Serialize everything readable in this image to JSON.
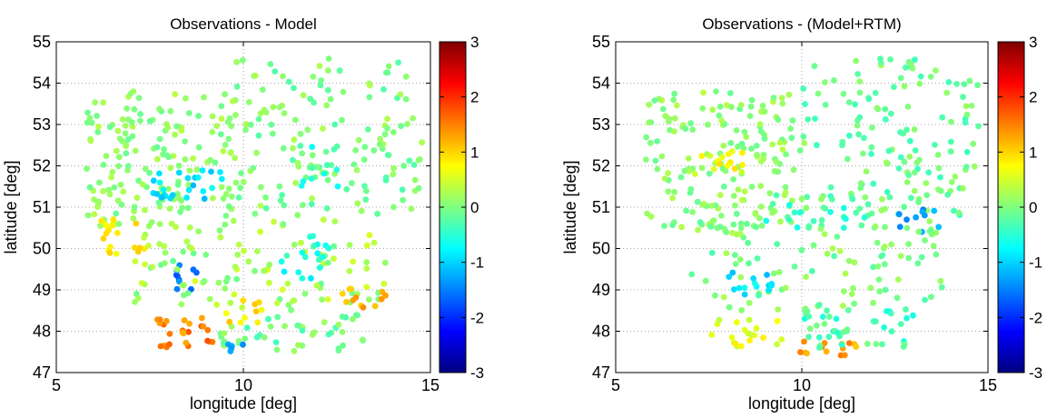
{
  "chart_data": [
    {
      "type": "scatter",
      "title": "Observations - Model",
      "xlabel": "longitude [deg]",
      "ylabel": "latitude [deg]",
      "xlim": [
        5,
        15
      ],
      "ylim": [
        47,
        55
      ],
      "xticks": [
        "5",
        "10",
        "15"
      ],
      "yticks": [
        "47",
        "48",
        "49",
        "50",
        "51",
        "52",
        "53",
        "54",
        "55"
      ],
      "grid": "dotted",
      "colorbar": {
        "min": -3,
        "max": 3,
        "ticks": [
          "3",
          "2",
          "1",
          "0",
          "-1",
          "-2",
          "-3"
        ],
        "colormap": "jet"
      },
      "clusters": [
        {
          "lon": [
            5.8,
            9.8
          ],
          "lat": [
            50.5,
            53.8
          ],
          "value": 0.1,
          "spread": 0.25,
          "n": 170
        },
        {
          "lon": [
            9.8,
            14.8
          ],
          "lat": [
            50.8,
            54.6
          ],
          "value": 0.0,
          "spread": 0.3,
          "n": 150
        },
        {
          "lon": [
            7.5,
            9.5
          ],
          "lat": [
            51.2,
            51.9
          ],
          "value": -0.9,
          "spread": 0.25,
          "n": 25
        },
        {
          "lon": [
            6.2,
            7.5
          ],
          "lat": [
            49.8,
            50.8
          ],
          "value": 0.8,
          "spread": 0.25,
          "n": 18
        },
        {
          "lon": [
            8.2,
            8.9
          ],
          "lat": [
            49.0,
            49.8
          ],
          "value": -1.6,
          "spread": 0.25,
          "n": 10
        },
        {
          "lon": [
            11.5,
            12.6
          ],
          "lat": [
            51.5,
            52.5
          ],
          "value": -0.5,
          "spread": 0.3,
          "n": 10
        },
        {
          "lon": [
            7.0,
            13.8
          ],
          "lat": [
            48.5,
            50.7
          ],
          "value": 0.2,
          "spread": 0.35,
          "n": 110
        },
        {
          "lon": [
            11.0,
            12.3
          ],
          "lat": [
            49.2,
            50.3
          ],
          "value": -0.6,
          "spread": 0.3,
          "n": 18
        },
        {
          "lon": [
            7.6,
            9.2
          ],
          "lat": [
            47.6,
            48.4
          ],
          "value": 1.5,
          "spread": 0.3,
          "n": 25
        },
        {
          "lon": [
            12.5,
            13.8
          ],
          "lat": [
            48.5,
            49.1
          ],
          "value": 1.3,
          "spread": 0.3,
          "n": 12
        },
        {
          "lon": [
            9.2,
            13.2
          ],
          "lat": [
            47.5,
            48.4
          ],
          "value": -0.1,
          "spread": 0.3,
          "n": 45
        },
        {
          "lon": [
            9.5,
            10.5
          ],
          "lat": [
            48.2,
            48.8
          ],
          "value": 0.9,
          "spread": 0.25,
          "n": 10
        },
        {
          "lon": [
            9.5,
            10.0
          ],
          "lat": [
            47.5,
            47.8
          ],
          "value": -1.3,
          "spread": 0.2,
          "n": 5
        }
      ]
    },
    {
      "type": "scatter",
      "title": "Observations - (Model+RTM)",
      "xlabel": "longitude [deg]",
      "ylabel": "latitude [deg]",
      "xlim": [
        5,
        15
      ],
      "ylim": [
        47,
        55
      ],
      "xticks": [
        "5",
        "10",
        "15"
      ],
      "yticks": [
        "47",
        "48",
        "49",
        "50",
        "51",
        "52",
        "53",
        "54",
        "55"
      ],
      "grid": "dotted",
      "colorbar": {
        "min": -3,
        "max": 3,
        "ticks": [
          "3",
          "2",
          "1",
          "0",
          "-1",
          "-2",
          "-3"
        ],
        "colormap": "jet"
      },
      "clusters": [
        {
          "lon": [
            5.8,
            9.8
          ],
          "lat": [
            50.5,
            53.8
          ],
          "value": 0.1,
          "spread": 0.25,
          "n": 170
        },
        {
          "lon": [
            9.8,
            14.8
          ],
          "lat": [
            50.8,
            54.6
          ],
          "value": -0.1,
          "spread": 0.3,
          "n": 150
        },
        {
          "lon": [
            7.0,
            8.5
          ],
          "lat": [
            51.8,
            52.4
          ],
          "value": 0.7,
          "spread": 0.25,
          "n": 15
        },
        {
          "lon": [
            9.0,
            11.8
          ],
          "lat": [
            50.5,
            51.3
          ],
          "value": -0.4,
          "spread": 0.25,
          "n": 25
        },
        {
          "lon": [
            12.5,
            13.8
          ],
          "lat": [
            50.4,
            51.0
          ],
          "value": -1.3,
          "spread": 0.25,
          "n": 10
        },
        {
          "lon": [
            7.0,
            13.8
          ],
          "lat": [
            48.5,
            50.7
          ],
          "value": 0.0,
          "spread": 0.3,
          "n": 110
        },
        {
          "lon": [
            8.0,
            9.2
          ],
          "lat": [
            48.8,
            49.6
          ],
          "value": -0.9,
          "spread": 0.3,
          "n": 14
        },
        {
          "lon": [
            7.5,
            9.5
          ],
          "lat": [
            47.6,
            48.3
          ],
          "value": 0.6,
          "spread": 0.25,
          "n": 20
        },
        {
          "lon": [
            9.8,
            11.5
          ],
          "lat": [
            47.4,
            47.8
          ],
          "value": 1.3,
          "spread": 0.25,
          "n": 14
        },
        {
          "lon": [
            10.0,
            13.2
          ],
          "lat": [
            47.6,
            48.5
          ],
          "value": -0.3,
          "spread": 0.3,
          "n": 40
        }
      ]
    }
  ]
}
